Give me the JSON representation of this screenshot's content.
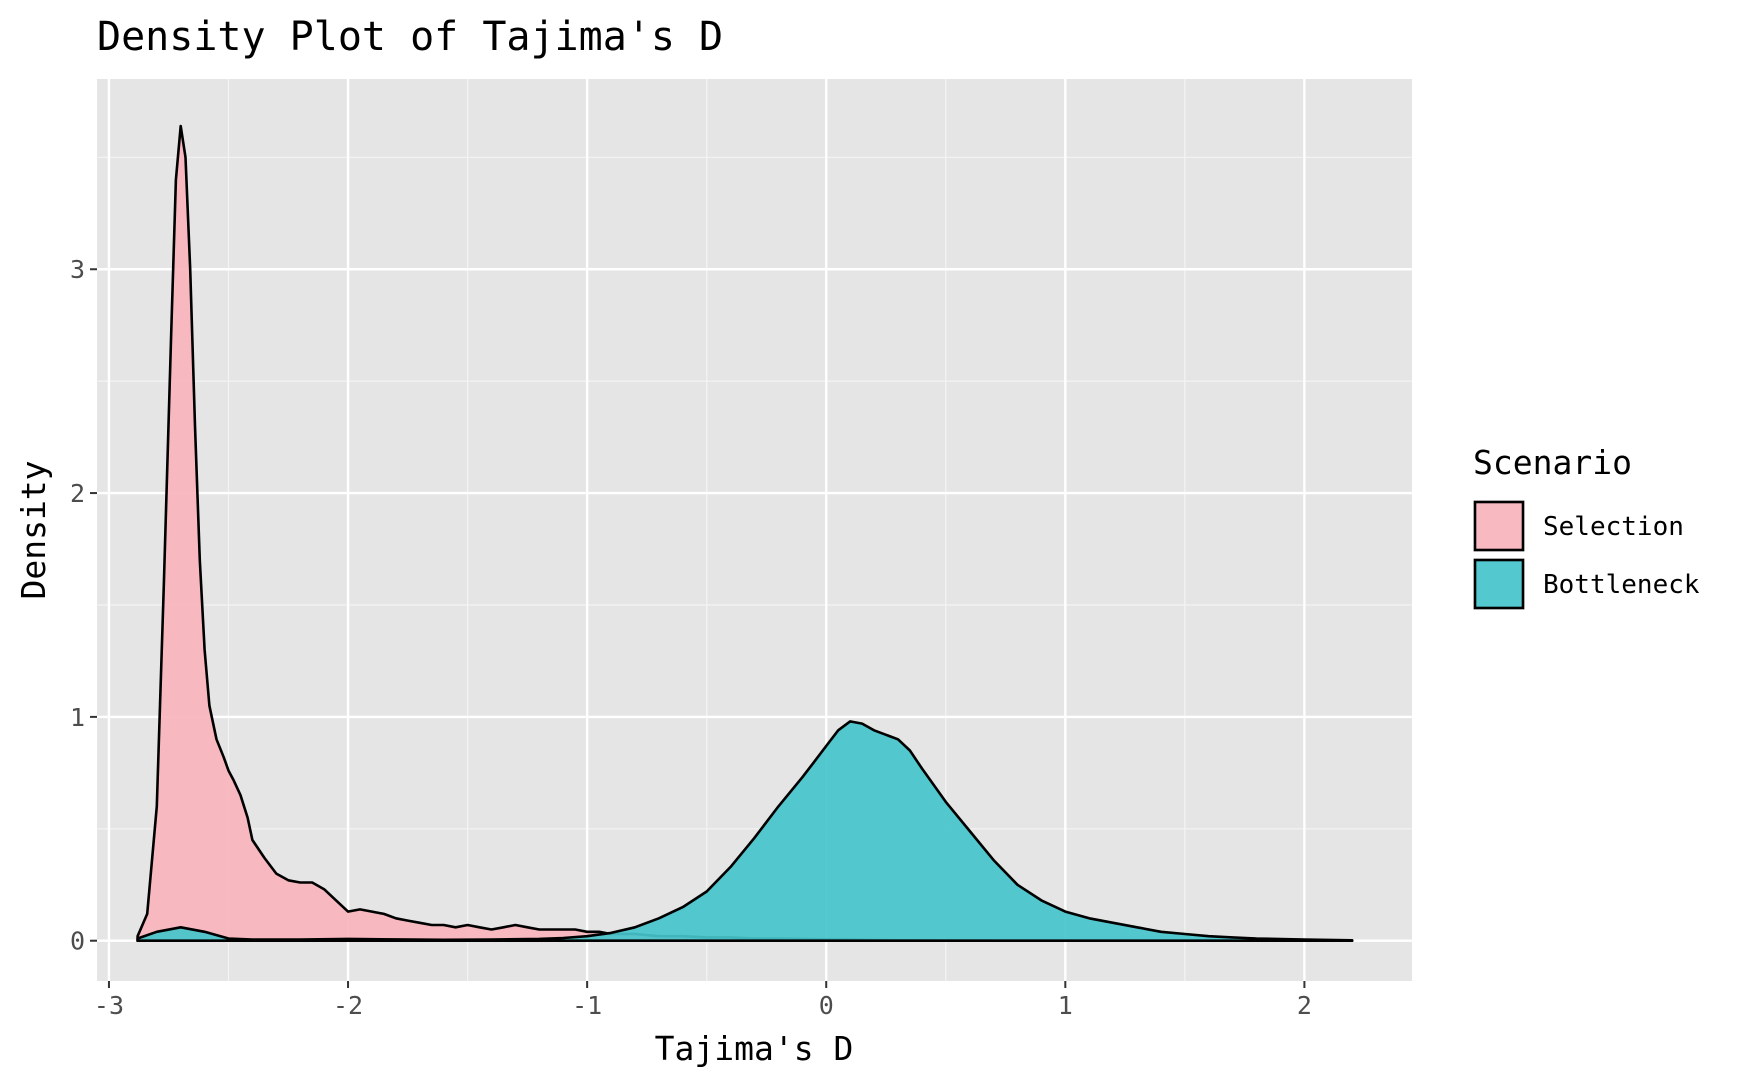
{
  "chart_data": {
    "type": "area",
    "title": "Density Plot of Tajima's D",
    "xlabel": "Tajima's D",
    "ylabel": "Density",
    "xlim": [
      -3.05,
      2.45
    ],
    "ylim": [
      -0.18,
      3.85
    ],
    "x_ticks": [
      -3,
      -2,
      -1,
      0,
      1,
      2
    ],
    "x_tick_labels": [
      "-3",
      "-2",
      "-1",
      "0",
      "1",
      "2"
    ],
    "y_ticks": [
      0,
      1,
      2,
      3
    ],
    "y_tick_labels": [
      "0",
      "1",
      "2",
      "3"
    ],
    "grid": true,
    "legend": {
      "title": "Scenario",
      "position": "right"
    },
    "series": [
      {
        "name": "Selection",
        "color": "#F8766D",
        "fill": "#F8B4BD",
        "x": [
          -2.88,
          -2.84,
          -2.8,
          -2.77,
          -2.74,
          -2.72,
          -2.7,
          -2.68,
          -2.66,
          -2.64,
          -2.62,
          -2.6,
          -2.58,
          -2.55,
          -2.52,
          -2.5,
          -2.48,
          -2.45,
          -2.42,
          -2.4,
          -2.35,
          -2.3,
          -2.25,
          -2.2,
          -2.15,
          -2.1,
          -2.05,
          -2.0,
          -1.95,
          -1.9,
          -1.85,
          -1.8,
          -1.75,
          -1.7,
          -1.65,
          -1.6,
          -1.55,
          -1.5,
          -1.45,
          -1.4,
          -1.35,
          -1.3,
          -1.25,
          -1.2,
          -1.15,
          -1.1,
          -1.05,
          -1.0,
          -0.95,
          -0.9,
          -0.85,
          -0.8,
          -0.7,
          -0.6,
          -0.5,
          -0.4,
          -0.3,
          -0.2,
          -0.1,
          0.0,
          0.1,
          0.2,
          0.3,
          0.5,
          0.7
        ],
        "y": [
          0.02,
          0.12,
          0.6,
          1.6,
          2.7,
          3.4,
          3.64,
          3.5,
          3.0,
          2.3,
          1.7,
          1.3,
          1.05,
          0.9,
          0.82,
          0.76,
          0.72,
          0.65,
          0.55,
          0.45,
          0.37,
          0.3,
          0.27,
          0.26,
          0.26,
          0.23,
          0.18,
          0.13,
          0.14,
          0.13,
          0.12,
          0.1,
          0.09,
          0.08,
          0.07,
          0.07,
          0.06,
          0.07,
          0.06,
          0.05,
          0.06,
          0.07,
          0.06,
          0.05,
          0.05,
          0.05,
          0.05,
          0.04,
          0.04,
          0.03,
          0.03,
          0.03,
          0.02,
          0.02,
          0.015,
          0.015,
          0.01,
          0.01,
          0.008,
          0.006,
          0.005,
          0.003,
          0.002,
          0.001,
          0.0
        ]
      },
      {
        "name": "Bottleneck",
        "color": "#00BFC4",
        "fill": "#45C4CC",
        "x": [
          -2.88,
          -2.8,
          -2.7,
          -2.6,
          -2.5,
          -2.4,
          -2.2,
          -2.0,
          -1.8,
          -1.6,
          -1.4,
          -1.2,
          -1.1,
          -1.0,
          -0.9,
          -0.8,
          -0.7,
          -0.6,
          -0.5,
          -0.4,
          -0.3,
          -0.2,
          -0.1,
          -0.05,
          0.0,
          0.05,
          0.1,
          0.15,
          0.2,
          0.25,
          0.3,
          0.35,
          0.4,
          0.5,
          0.6,
          0.7,
          0.8,
          0.9,
          1.0,
          1.1,
          1.2,
          1.3,
          1.4,
          1.5,
          1.6,
          1.7,
          1.8,
          2.0,
          2.2
        ],
        "y": [
          0.01,
          0.04,
          0.06,
          0.04,
          0.01,
          0.005,
          0.005,
          0.008,
          0.006,
          0.004,
          0.005,
          0.008,
          0.012,
          0.02,
          0.035,
          0.06,
          0.1,
          0.15,
          0.22,
          0.33,
          0.46,
          0.6,
          0.73,
          0.8,
          0.87,
          0.94,
          0.98,
          0.97,
          0.94,
          0.92,
          0.9,
          0.85,
          0.77,
          0.62,
          0.49,
          0.36,
          0.25,
          0.18,
          0.13,
          0.1,
          0.08,
          0.06,
          0.04,
          0.03,
          0.02,
          0.015,
          0.01,
          0.005,
          0.002
        ]
      }
    ]
  }
}
